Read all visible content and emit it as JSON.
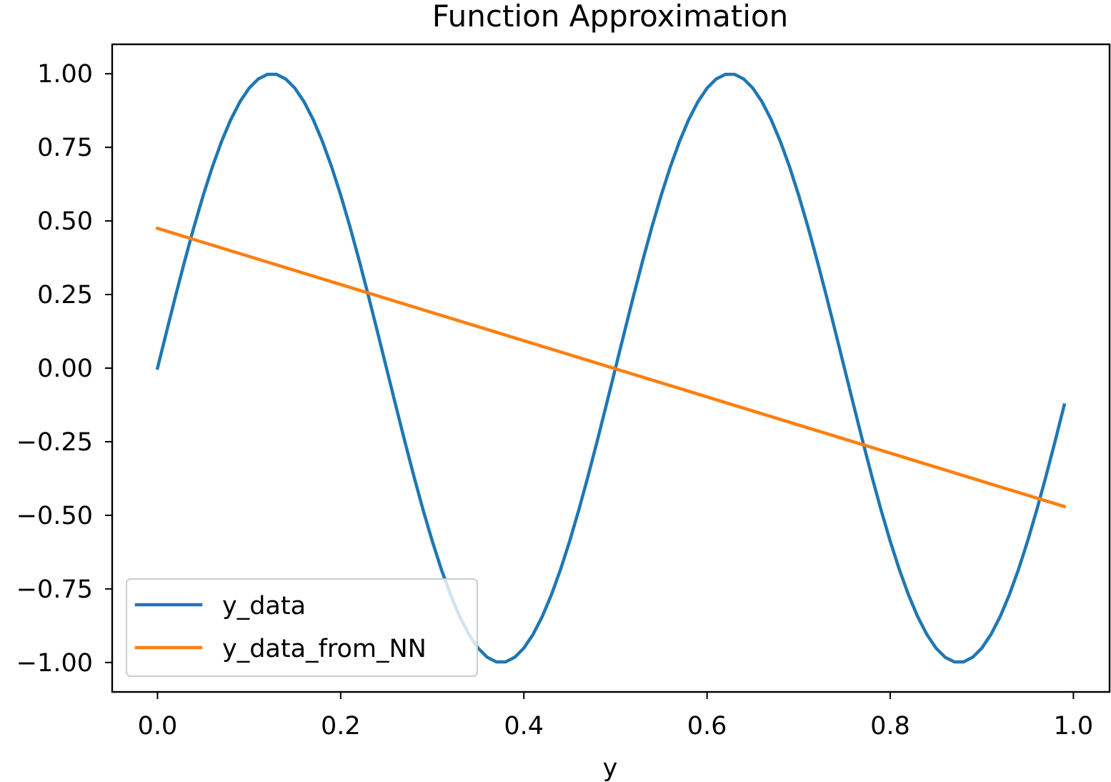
{
  "chart_data": {
    "type": "line",
    "title": "Function Approximation",
    "xlabel": "y",
    "ylabel": "",
    "xlim": [
      -0.0495,
      1.0395
    ],
    "ylim": [
      -1.1,
      1.1
    ],
    "xticks": [
      0.0,
      0.2,
      0.4,
      0.6,
      0.8,
      1.0
    ],
    "xtick_labels": [
      "0.0",
      "0.2",
      "0.4",
      "0.6",
      "0.8",
      "1.0"
    ],
    "yticks": [
      1.0,
      0.75,
      0.5,
      0.25,
      0.0,
      -0.25,
      -0.5,
      -0.75,
      -1.0
    ],
    "ytick_labels": [
      "1.00",
      "0.75",
      "0.50",
      "0.25",
      "0.00",
      "−0.25",
      "−0.50",
      "−0.75",
      "−1.00"
    ],
    "grid": false,
    "legend_position": "lower-left",
    "series": [
      {
        "name": "y_data",
        "color": "#1f77b4",
        "x": [
          0.0,
          0.01,
          0.02,
          0.03,
          0.04,
          0.05,
          0.06,
          0.07,
          0.08,
          0.09,
          0.1,
          0.11,
          0.12,
          0.13,
          0.14,
          0.15,
          0.16,
          0.17,
          0.18,
          0.19,
          0.2,
          0.21,
          0.22,
          0.23,
          0.24,
          0.25,
          0.26,
          0.27,
          0.28,
          0.29,
          0.3,
          0.31,
          0.32,
          0.33,
          0.34,
          0.35,
          0.36,
          0.37,
          0.38,
          0.39,
          0.4,
          0.41,
          0.42,
          0.43,
          0.44,
          0.45,
          0.46,
          0.47,
          0.48,
          0.49,
          0.5,
          0.51,
          0.52,
          0.53,
          0.54,
          0.55,
          0.56,
          0.57,
          0.58,
          0.59,
          0.6,
          0.61,
          0.62,
          0.63,
          0.64,
          0.65,
          0.66,
          0.67,
          0.68,
          0.69,
          0.7,
          0.71,
          0.72,
          0.73,
          0.74,
          0.75,
          0.76,
          0.77,
          0.78,
          0.79,
          0.8,
          0.81,
          0.82,
          0.83,
          0.84,
          0.85,
          0.86,
          0.87,
          0.88,
          0.89,
          0.9,
          0.91,
          0.92,
          0.93,
          0.94,
          0.95,
          0.96,
          0.97,
          0.98,
          0.99
        ],
        "y": [
          0.0,
          0.1253,
          0.2487,
          0.3681,
          0.4818,
          0.5878,
          0.6845,
          0.7705,
          0.8443,
          0.9048,
          0.9511,
          0.9823,
          0.998,
          0.998,
          0.9823,
          0.9511,
          0.9048,
          0.8443,
          0.7705,
          0.6845,
          0.5878,
          0.4818,
          0.3681,
          0.2487,
          0.1253,
          0.0,
          -0.1253,
          -0.2487,
          -0.3681,
          -0.4818,
          -0.5878,
          -0.6845,
          -0.7705,
          -0.8443,
          -0.9048,
          -0.9511,
          -0.9823,
          -0.998,
          -0.998,
          -0.9823,
          -0.9511,
          -0.9048,
          -0.8443,
          -0.7705,
          -0.6845,
          -0.5878,
          -0.4818,
          -0.3681,
          -0.2487,
          -0.1253,
          0.0,
          0.1253,
          0.2487,
          0.3681,
          0.4818,
          0.5878,
          0.6845,
          0.7705,
          0.8443,
          0.9048,
          0.9511,
          0.9823,
          0.998,
          0.998,
          0.9823,
          0.9511,
          0.9048,
          0.8443,
          0.7705,
          0.6845,
          0.5878,
          0.4818,
          0.3681,
          0.2487,
          0.1253,
          0.0,
          -0.1253,
          -0.2487,
          -0.3681,
          -0.4818,
          -0.5878,
          -0.6845,
          -0.7705,
          -0.8443,
          -0.9048,
          -0.9511,
          -0.9823,
          -0.998,
          -0.998,
          -0.9823,
          -0.9511,
          -0.9048,
          -0.8443,
          -0.7705,
          -0.6845,
          -0.5878,
          -0.4818,
          -0.3681,
          -0.2487,
          -0.1253
        ]
      },
      {
        "name": "y_data_from_NN",
        "color": "#ff7f0e",
        "x": [
          0.0,
          0.99
        ],
        "y": [
          0.475,
          -0.47
        ]
      }
    ]
  }
}
